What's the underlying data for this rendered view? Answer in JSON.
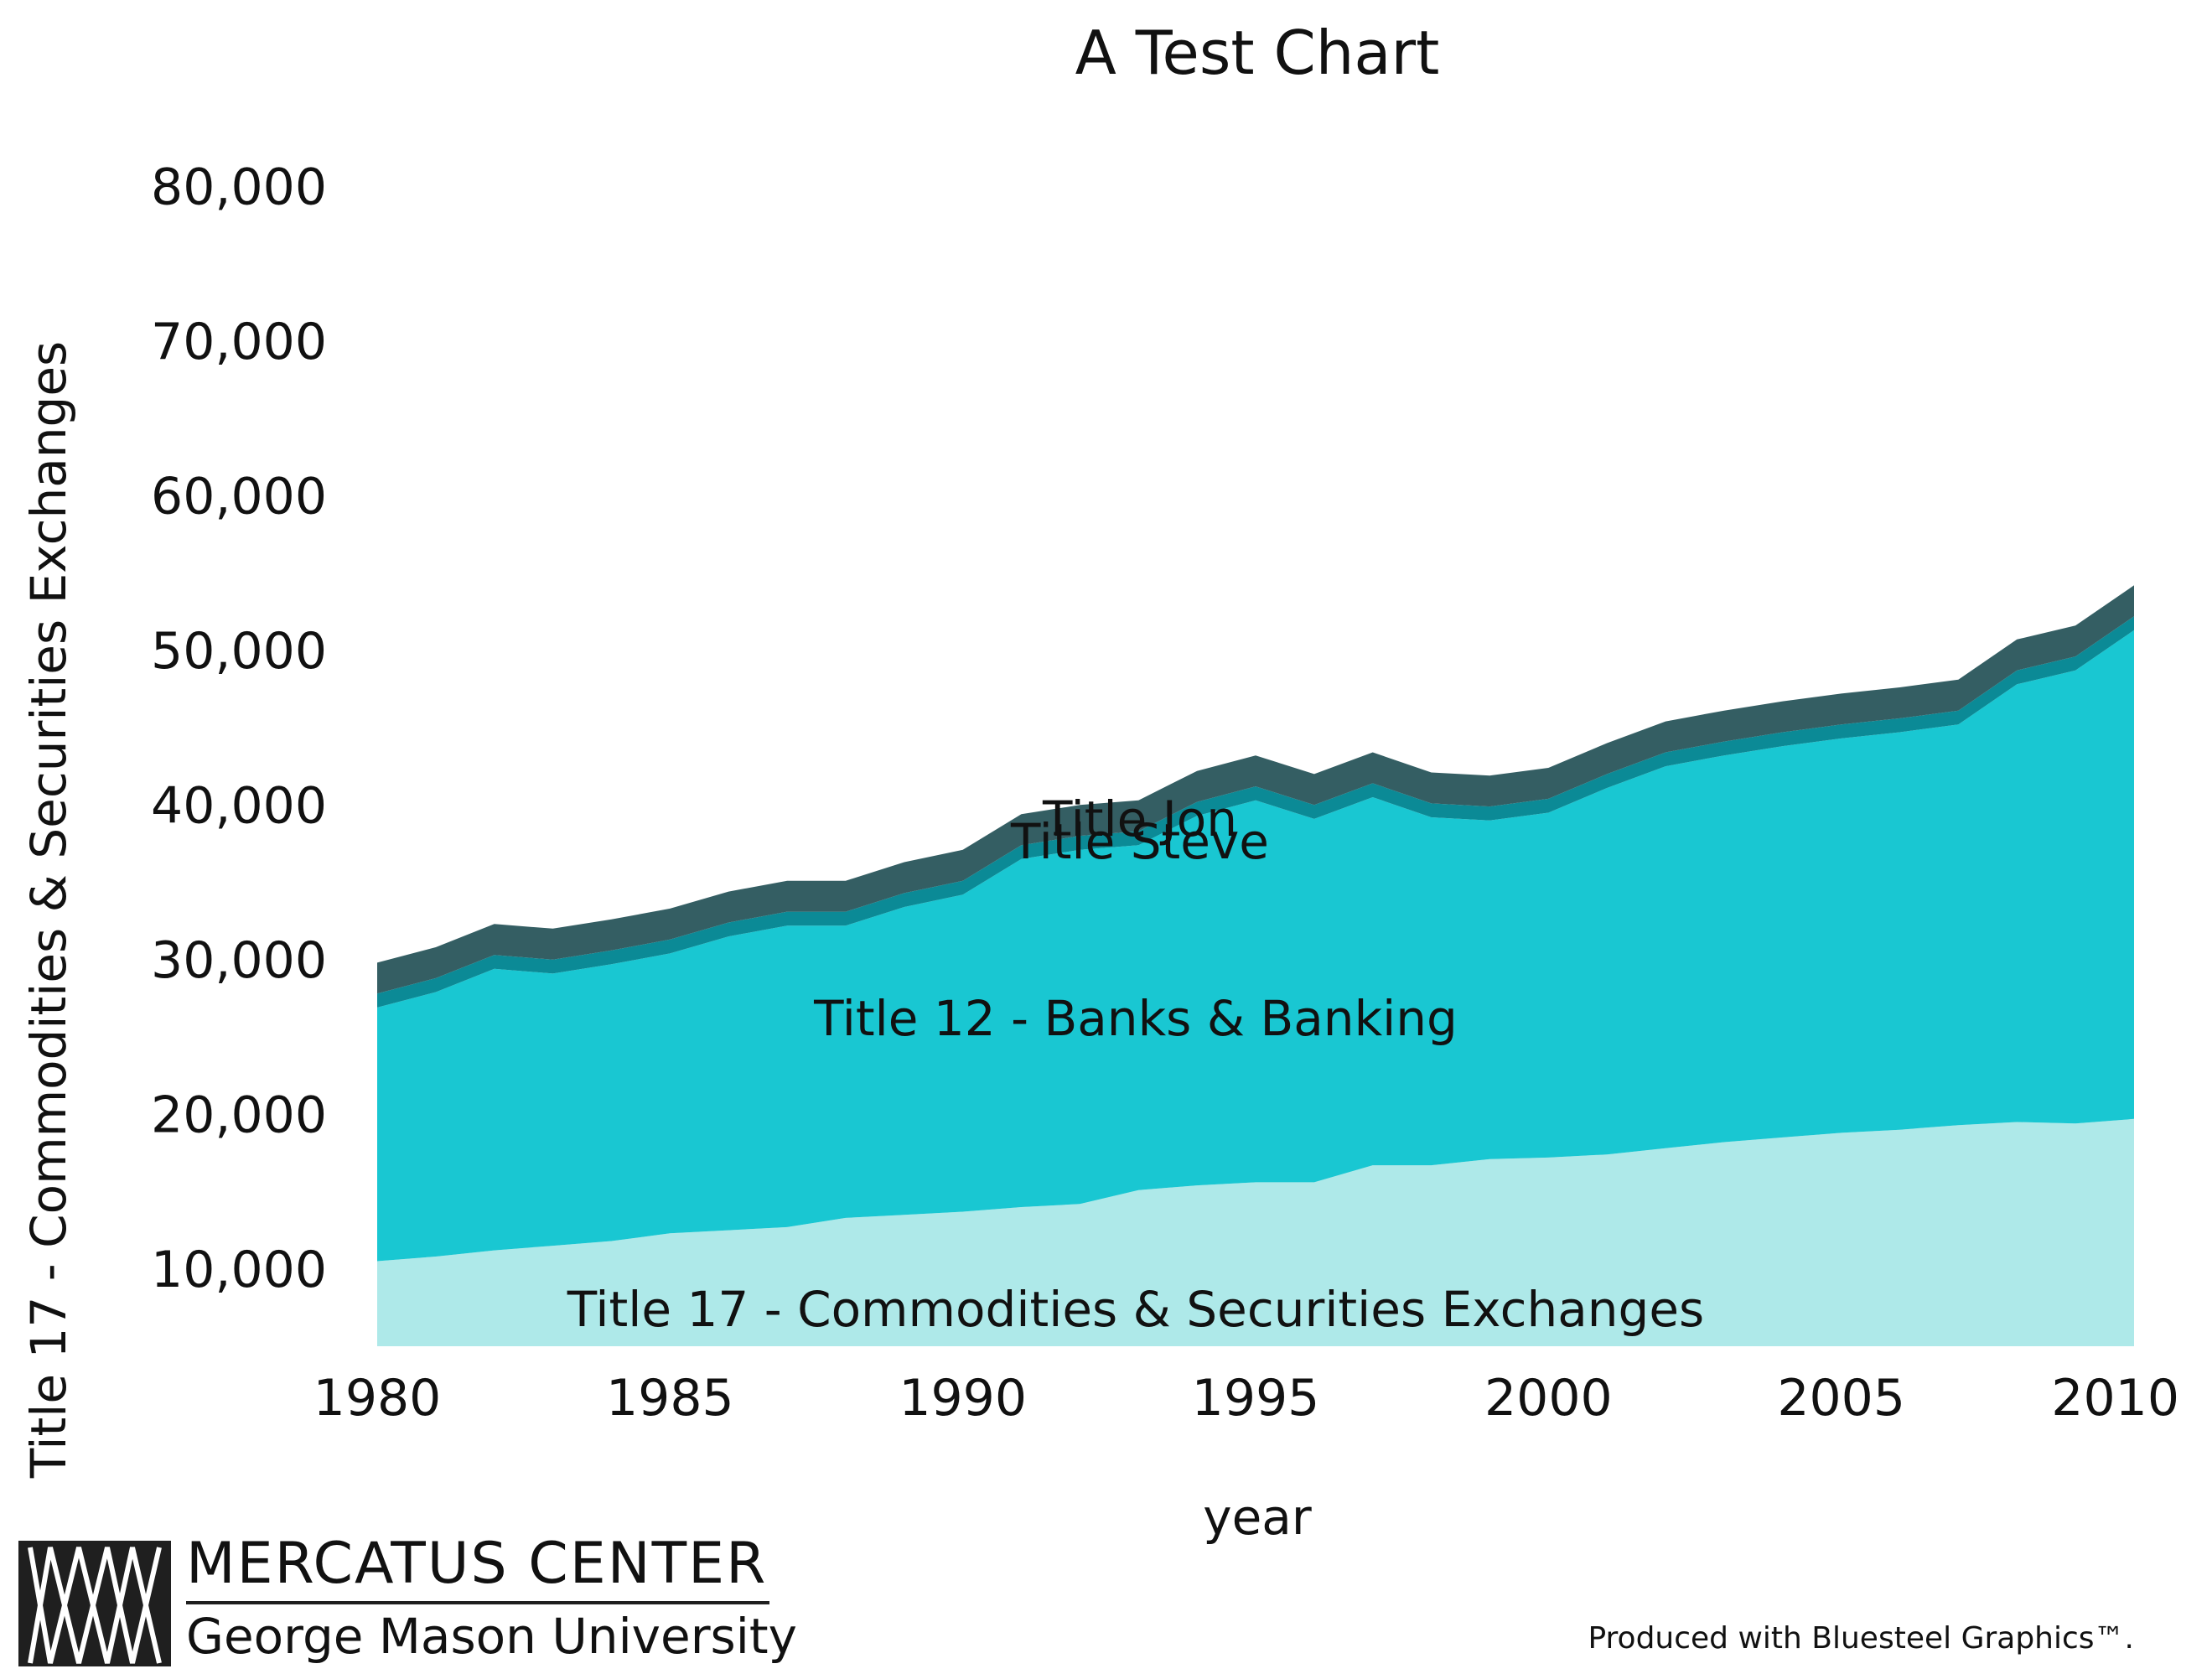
{
  "chart_data": {
    "type": "area",
    "stacked": true,
    "title": "A Test Chart",
    "xlabel": "year",
    "ylabel": "Title 17 - Commodities & Securities Exchanges",
    "xlim": [
      1980,
      2010
    ],
    "ylim": [
      5000,
      85000
    ],
    "x_ticks": [
      1980,
      1985,
      1990,
      1995,
      2000,
      2005,
      2010
    ],
    "x_tick_labels": [
      "1980",
      "1985",
      "1990",
      "1995",
      "2000",
      "2005",
      "2010"
    ],
    "y_ticks": [
      10000,
      20000,
      30000,
      40000,
      50000,
      60000,
      70000,
      80000
    ],
    "y_tick_labels": [
      "10,000",
      "20,000",
      "30,000",
      "40,000",
      "50,000",
      "60,000",
      "70,000",
      "80,000"
    ],
    "grid": false,
    "legend": "inline labels",
    "x": [
      1980,
      1981,
      1982,
      1983,
      1984,
      1985,
      1986,
      1987,
      1988,
      1989,
      1990,
      1991,
      1992,
      1993,
      1994,
      1995,
      1996,
      1997,
      1998,
      1999,
      2000,
      2001,
      2002,
      2003,
      2004,
      2005,
      2006,
      2007,
      2008,
      2009,
      2010
    ],
    "series": [
      {
        "name": "Title 17 - Commodities & Securities Exchanges",
        "color": "#aee9e9",
        "values": [
          10500,
          10800,
          11200,
          11500,
          11800,
          12300,
          12500,
          12700,
          13300,
          13500,
          13700,
          14000,
          14200,
          15100,
          15400,
          15600,
          15600,
          16700,
          16700,
          17100,
          17200,
          17400,
          17800,
          18200,
          18500,
          18800,
          19000,
          19300,
          19500,
          19400,
          19700
        ]
      },
      {
        "name": "Title 12 - Banks & Banking",
        "color": "#19c7d2",
        "values": [
          16400,
          17100,
          18200,
          17600,
          17900,
          18100,
          19000,
          19500,
          18900,
          19900,
          20500,
          22500,
          22900,
          22300,
          23900,
          24700,
          23500,
          23800,
          22500,
          21900,
          22300,
          23700,
          24700,
          25000,
          25300,
          25500,
          25700,
          25900,
          28300,
          29300,
          31600
        ]
      },
      {
        "name": "Title Steve",
        "color": "#0b8a96",
        "values": [
          900,
          900,
          900,
          900,
          900,
          900,
          900,
          900,
          900,
          900,
          900,
          900,
          900,
          900,
          900,
          900,
          900,
          900,
          900,
          900,
          900,
          900,
          900,
          900,
          900,
          900,
          900,
          900,
          900,
          900,
          900
        ]
      },
      {
        "name": "Title Jon",
        "color": "#345e63",
        "values": [
          2000,
          2000,
          2000,
          2000,
          2000,
          2000,
          2000,
          2000,
          2000,
          2000,
          2000,
          2000,
          2000,
          2000,
          2000,
          2000,
          2000,
          2000,
          2000,
          2000,
          2000,
          2000,
          2000,
          2000,
          2000,
          2000,
          2000,
          2000,
          2000,
          2000,
          2000
        ]
      }
    ],
    "series_labels": [
      "Title 17 - Commodities & Securities Exchanges",
      "Title 12 - Banks & Banking",
      "Title Steve",
      "Title Jon"
    ]
  },
  "logo": {
    "line1": "MERCATUS CENTER",
    "line2": "George Mason University"
  },
  "footer": {
    "text": "Produced with Bluesteel Graphics™."
  }
}
